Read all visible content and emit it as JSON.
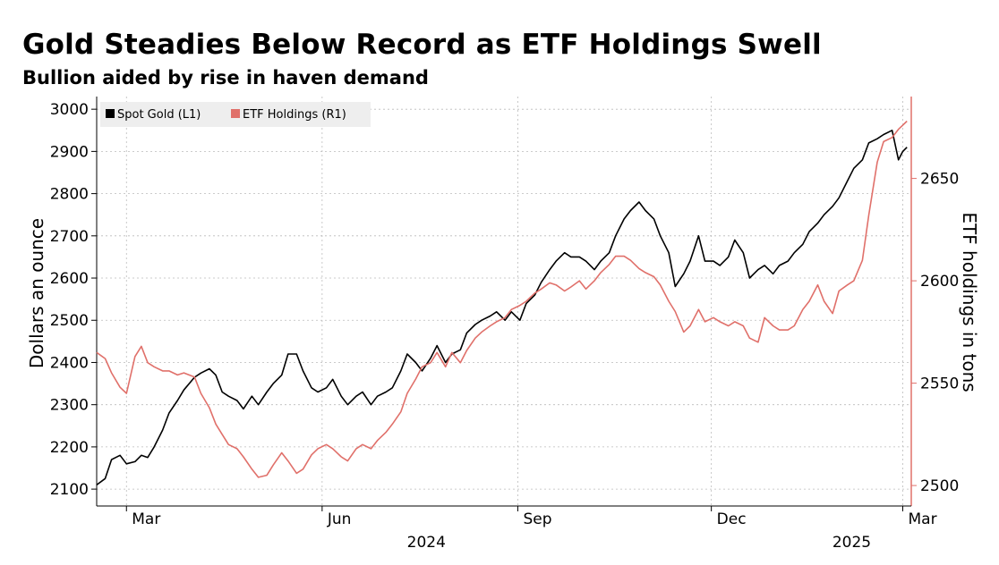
{
  "chart_data": {
    "type": "line",
    "title": "Gold Steadies Below Record as ETF Holdings Swell",
    "subtitle": "Bullion aided by rise in haven demand",
    "ylabel_left": "Dollars an ounce",
    "ylabel_right": "ETF holdings in tons",
    "ylim_left": [
      2060,
      3030
    ],
    "ylim_right": [
      2490,
      2690
    ],
    "yticks_left": [
      2100,
      2200,
      2300,
      2400,
      2500,
      2600,
      2700,
      2800,
      2900,
      3000
    ],
    "yticks_right": [
      2500,
      2550,
      2600,
      2650
    ],
    "xlim": [
      "2024-02-16",
      "2025-03-05"
    ],
    "xticks": [
      {
        "date": "2024-03-01",
        "label": "Mar"
      },
      {
        "date": "2024-06-01",
        "label": "Jun"
      },
      {
        "date": "2024-09-01",
        "label": "Sep"
      },
      {
        "date": "2024-12-01",
        "label": "Dec"
      },
      {
        "date": "2025-03-01",
        "label": "Mar"
      }
    ],
    "year_labels": [
      {
        "label": "2024",
        "date": "2024-07-20"
      },
      {
        "label": "2025",
        "date": "2025-02-05"
      }
    ],
    "grid": true,
    "legend_position": "top-left",
    "colors": {
      "gold": "#000000",
      "etf": "#e0706a",
      "right_axis": "#e0706a",
      "grid": "#bbbbbb",
      "legend_bg": "#eeeeee"
    },
    "series": [
      {
        "name": "Spot Gold (L1)",
        "axis": "left",
        "points": [
          [
            "2024-02-16",
            2110
          ],
          [
            "2024-02-20",
            2125
          ],
          [
            "2024-02-23",
            2170
          ],
          [
            "2024-02-27",
            2180
          ],
          [
            "2024-03-01",
            2160
          ],
          [
            "2024-03-05",
            2165
          ],
          [
            "2024-03-08",
            2180
          ],
          [
            "2024-03-11",
            2175
          ],
          [
            "2024-03-14",
            2200
          ],
          [
            "2024-03-18",
            2240
          ],
          [
            "2024-03-21",
            2280
          ],
          [
            "2024-03-25",
            2310
          ],
          [
            "2024-03-28",
            2335
          ],
          [
            "2024-04-02",
            2365
          ],
          [
            "2024-04-05",
            2375
          ],
          [
            "2024-04-09",
            2385
          ],
          [
            "2024-04-12",
            2370
          ],
          [
            "2024-04-15",
            2330
          ],
          [
            "2024-04-18",
            2320
          ],
          [
            "2024-04-22",
            2310
          ],
          [
            "2024-04-25",
            2290
          ],
          [
            "2024-04-29",
            2320
          ],
          [
            "2024-05-02",
            2300
          ],
          [
            "2024-05-06",
            2330
          ],
          [
            "2024-05-09",
            2350
          ],
          [
            "2024-05-13",
            2370
          ],
          [
            "2024-05-16",
            2420
          ],
          [
            "2024-05-20",
            2420
          ],
          [
            "2024-05-23",
            2380
          ],
          [
            "2024-05-27",
            2340
          ],
          [
            "2024-05-30",
            2330
          ],
          [
            "2024-06-03",
            2340
          ],
          [
            "2024-06-06",
            2360
          ],
          [
            "2024-06-10",
            2320
          ],
          [
            "2024-06-13",
            2300
          ],
          [
            "2024-06-17",
            2320
          ],
          [
            "2024-06-20",
            2330
          ],
          [
            "2024-06-24",
            2300
          ],
          [
            "2024-06-27",
            2320
          ],
          [
            "2024-07-01",
            2330
          ],
          [
            "2024-07-04",
            2340
          ],
          [
            "2024-07-08",
            2380
          ],
          [
            "2024-07-11",
            2420
          ],
          [
            "2024-07-15",
            2400
          ],
          [
            "2024-07-18",
            2380
          ],
          [
            "2024-07-22",
            2410
          ],
          [
            "2024-07-25",
            2440
          ],
          [
            "2024-07-29",
            2400
          ],
          [
            "2024-08-01",
            2420
          ],
          [
            "2024-08-05",
            2430
          ],
          [
            "2024-08-08",
            2470
          ],
          [
            "2024-08-12",
            2490
          ],
          [
            "2024-08-15",
            2500
          ],
          [
            "2024-08-19",
            2510
          ],
          [
            "2024-08-22",
            2520
          ],
          [
            "2024-08-26",
            2500
          ],
          [
            "2024-08-29",
            2520
          ],
          [
            "2024-09-02",
            2500
          ],
          [
            "2024-09-05",
            2540
          ],
          [
            "2024-09-09",
            2560
          ],
          [
            "2024-09-12",
            2590
          ],
          [
            "2024-09-16",
            2620
          ],
          [
            "2024-09-19",
            2640
          ],
          [
            "2024-09-23",
            2660
          ],
          [
            "2024-09-26",
            2650
          ],
          [
            "2024-09-30",
            2650
          ],
          [
            "2024-10-03",
            2640
          ],
          [
            "2024-10-07",
            2620
          ],
          [
            "2024-10-10",
            2640
          ],
          [
            "2024-10-14",
            2660
          ],
          [
            "2024-10-17",
            2700
          ],
          [
            "2024-10-21",
            2740
          ],
          [
            "2024-10-24",
            2760
          ],
          [
            "2024-10-28",
            2780
          ],
          [
            "2024-10-31",
            2760
          ],
          [
            "2024-11-04",
            2740
          ],
          [
            "2024-11-07",
            2700
          ],
          [
            "2024-11-11",
            2660
          ],
          [
            "2024-11-14",
            2580
          ],
          [
            "2024-11-18",
            2610
          ],
          [
            "2024-11-21",
            2640
          ],
          [
            "2024-11-25",
            2700
          ],
          [
            "2024-11-28",
            2640
          ],
          [
            "2024-12-02",
            2640
          ],
          [
            "2024-12-05",
            2630
          ],
          [
            "2024-12-09",
            2650
          ],
          [
            "2024-12-12",
            2690
          ],
          [
            "2024-12-16",
            2660
          ],
          [
            "2024-12-19",
            2600
          ],
          [
            "2024-12-23",
            2620
          ],
          [
            "2024-12-26",
            2630
          ],
          [
            "2024-12-30",
            2610
          ],
          [
            "2025-01-02",
            2630
          ],
          [
            "2025-01-06",
            2640
          ],
          [
            "2025-01-09",
            2660
          ],
          [
            "2025-01-13",
            2680
          ],
          [
            "2025-01-16",
            2710
          ],
          [
            "2025-01-20",
            2730
          ],
          [
            "2025-01-23",
            2750
          ],
          [
            "2025-01-27",
            2770
          ],
          [
            "2025-01-30",
            2790
          ],
          [
            "2025-02-03",
            2830
          ],
          [
            "2025-02-06",
            2860
          ],
          [
            "2025-02-10",
            2880
          ],
          [
            "2025-02-13",
            2920
          ],
          [
            "2025-02-17",
            2930
          ],
          [
            "2025-02-20",
            2940
          ],
          [
            "2025-02-24",
            2950
          ],
          [
            "2025-02-27",
            2880
          ],
          [
            "2025-03-01",
            2900
          ],
          [
            "2025-03-03",
            2910
          ]
        ]
      },
      {
        "name": "ETF Holdings (R1)",
        "axis": "right",
        "points": [
          [
            "2024-02-16",
            2565
          ],
          [
            "2024-02-20",
            2562
          ],
          [
            "2024-02-23",
            2555
          ],
          [
            "2024-02-27",
            2548
          ],
          [
            "2024-03-01",
            2545
          ],
          [
            "2024-03-05",
            2563
          ],
          [
            "2024-03-08",
            2568
          ],
          [
            "2024-03-11",
            2560
          ],
          [
            "2024-03-14",
            2558
          ],
          [
            "2024-03-18",
            2556
          ],
          [
            "2024-03-21",
            2556
          ],
          [
            "2024-03-25",
            2554
          ],
          [
            "2024-03-28",
            2555
          ],
          [
            "2024-04-02",
            2553
          ],
          [
            "2024-04-05",
            2545
          ],
          [
            "2024-04-09",
            2538
          ],
          [
            "2024-04-12",
            2530
          ],
          [
            "2024-04-15",
            2525
          ],
          [
            "2024-04-18",
            2520
          ],
          [
            "2024-04-22",
            2518
          ],
          [
            "2024-04-25",
            2514
          ],
          [
            "2024-04-29",
            2508
          ],
          [
            "2024-05-02",
            2504
          ],
          [
            "2024-05-06",
            2505
          ],
          [
            "2024-05-09",
            2510
          ],
          [
            "2024-05-13",
            2516
          ],
          [
            "2024-05-16",
            2512
          ],
          [
            "2024-05-20",
            2506
          ],
          [
            "2024-05-23",
            2508
          ],
          [
            "2024-05-27",
            2515
          ],
          [
            "2024-05-30",
            2518
          ],
          [
            "2024-06-03",
            2520
          ],
          [
            "2024-06-06",
            2518
          ],
          [
            "2024-06-10",
            2514
          ],
          [
            "2024-06-13",
            2512
          ],
          [
            "2024-06-17",
            2518
          ],
          [
            "2024-06-20",
            2520
          ],
          [
            "2024-06-24",
            2518
          ],
          [
            "2024-06-27",
            2522
          ],
          [
            "2024-07-01",
            2526
          ],
          [
            "2024-07-04",
            2530
          ],
          [
            "2024-07-08",
            2536
          ],
          [
            "2024-07-11",
            2545
          ],
          [
            "2024-07-15",
            2552
          ],
          [
            "2024-07-18",
            2558
          ],
          [
            "2024-07-22",
            2560
          ],
          [
            "2024-07-25",
            2565
          ],
          [
            "2024-07-29",
            2558
          ],
          [
            "2024-08-01",
            2565
          ],
          [
            "2024-08-05",
            2560
          ],
          [
            "2024-08-08",
            2566
          ],
          [
            "2024-08-12",
            2572
          ],
          [
            "2024-08-15",
            2575
          ],
          [
            "2024-08-19",
            2578
          ],
          [
            "2024-08-22",
            2580
          ],
          [
            "2024-08-26",
            2582
          ],
          [
            "2024-08-29",
            2586
          ],
          [
            "2024-09-02",
            2588
          ],
          [
            "2024-09-05",
            2590
          ],
          [
            "2024-09-09",
            2594
          ],
          [
            "2024-09-12",
            2596
          ],
          [
            "2024-09-16",
            2599
          ],
          [
            "2024-09-19",
            2598
          ],
          [
            "2024-09-23",
            2595
          ],
          [
            "2024-09-26",
            2597
          ],
          [
            "2024-09-30",
            2600
          ],
          [
            "2024-10-03",
            2596
          ],
          [
            "2024-10-07",
            2600
          ],
          [
            "2024-10-10",
            2604
          ],
          [
            "2024-10-14",
            2608
          ],
          [
            "2024-10-17",
            2612
          ],
          [
            "2024-10-21",
            2612
          ],
          [
            "2024-10-24",
            2610
          ],
          [
            "2024-10-28",
            2606
          ],
          [
            "2024-10-31",
            2604
          ],
          [
            "2024-11-04",
            2602
          ],
          [
            "2024-11-07",
            2598
          ],
          [
            "2024-11-11",
            2590
          ],
          [
            "2024-11-14",
            2585
          ],
          [
            "2024-11-18",
            2575
          ],
          [
            "2024-11-21",
            2578
          ],
          [
            "2024-11-25",
            2586
          ],
          [
            "2024-11-28",
            2580
          ],
          [
            "2024-12-02",
            2582
          ],
          [
            "2024-12-05",
            2580
          ],
          [
            "2024-12-09",
            2578
          ],
          [
            "2024-12-12",
            2580
          ],
          [
            "2024-12-16",
            2578
          ],
          [
            "2024-12-19",
            2572
          ],
          [
            "2024-12-23",
            2570
          ],
          [
            "2024-12-26",
            2582
          ],
          [
            "2024-12-30",
            2578
          ],
          [
            "2025-01-02",
            2576
          ],
          [
            "2025-01-06",
            2576
          ],
          [
            "2025-01-09",
            2578
          ],
          [
            "2025-01-13",
            2586
          ],
          [
            "2025-01-16",
            2590
          ],
          [
            "2025-01-20",
            2598
          ],
          [
            "2025-01-23",
            2590
          ],
          [
            "2025-01-27",
            2584
          ],
          [
            "2025-01-30",
            2595
          ],
          [
            "2025-02-03",
            2598
          ],
          [
            "2025-02-06",
            2600
          ],
          [
            "2025-02-10",
            2610
          ],
          [
            "2025-02-13",
            2632
          ],
          [
            "2025-02-17",
            2658
          ],
          [
            "2025-02-20",
            2668
          ],
          [
            "2025-02-24",
            2670
          ],
          [
            "2025-02-27",
            2674
          ],
          [
            "2025-03-01",
            2676
          ],
          [
            "2025-03-03",
            2678
          ]
        ]
      }
    ]
  }
}
